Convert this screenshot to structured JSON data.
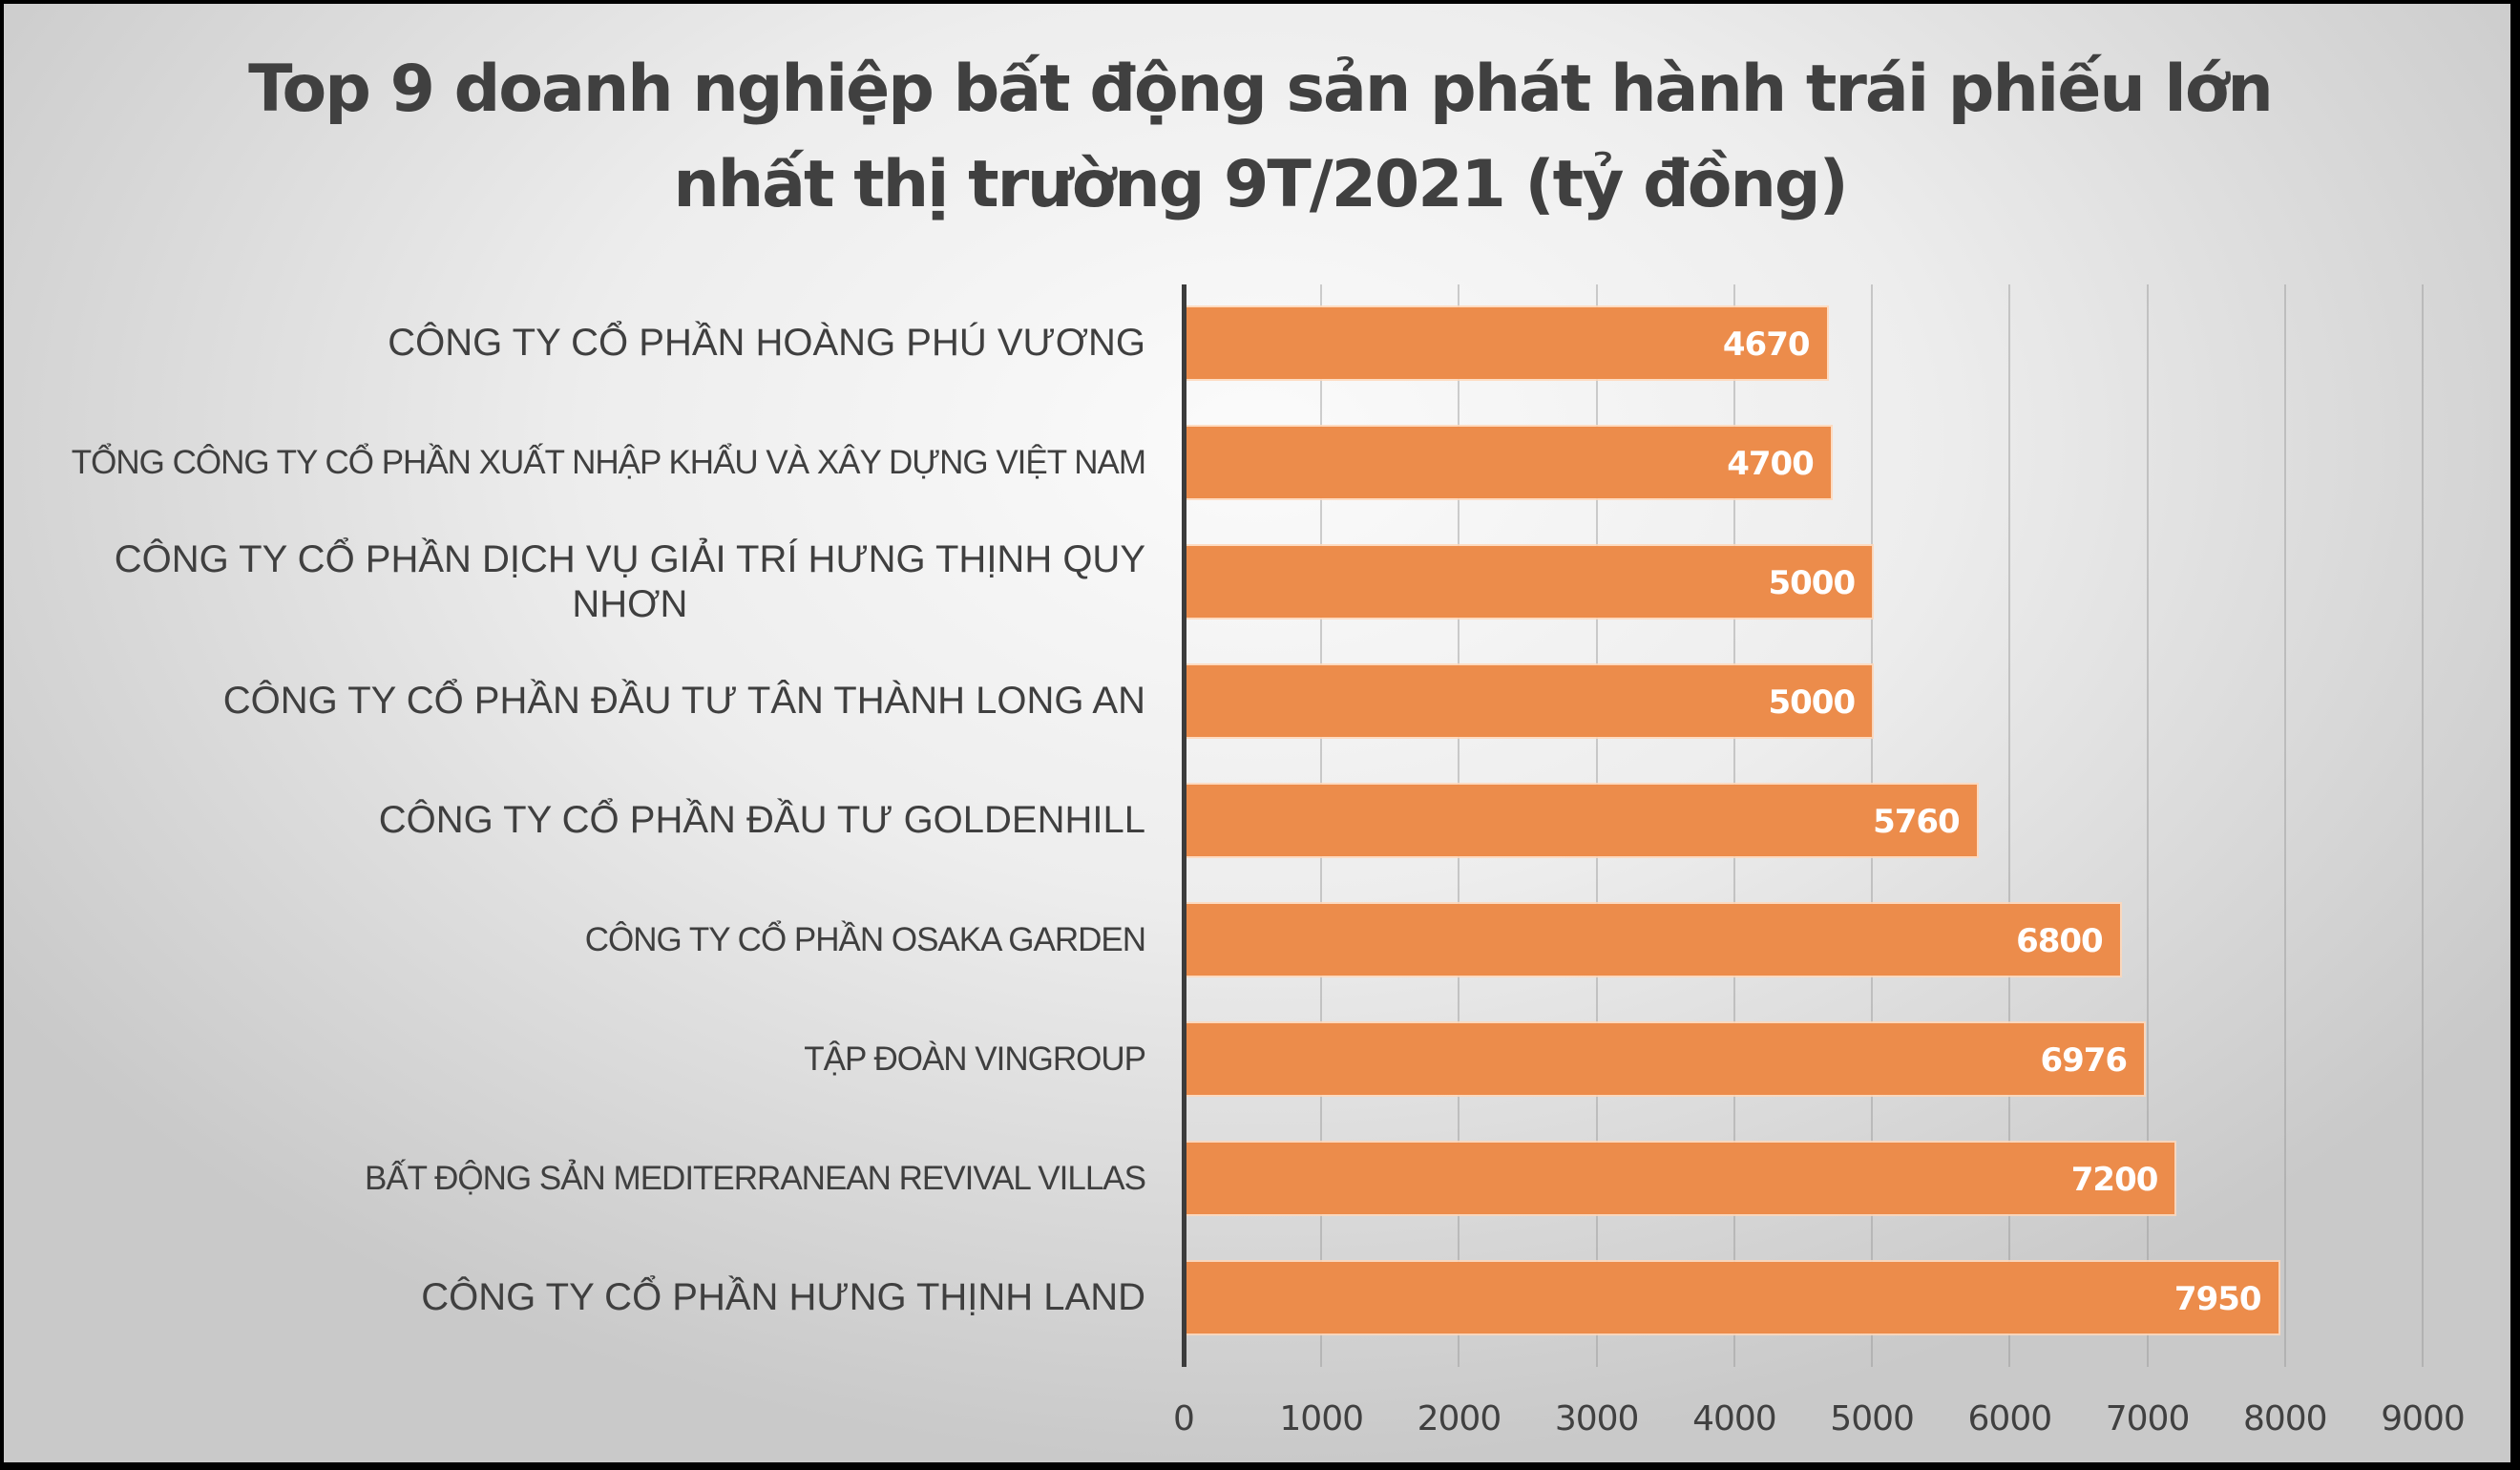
{
  "chart_data": {
    "type": "bar",
    "orientation": "horizontal",
    "title": "Top 9 doanh nghiệp bất động sản phát hành trái phiếu lớn nhất thị trường 9T/2021 (tỷ đồng)",
    "title_lines": [
      "Top 9 doanh nghiệp bất động sản phát hành trái phiếu lớn",
      "nhất thị trường 9T/2021 (tỷ đồng)"
    ],
    "categories": [
      "CÔNG TY CỔ PHẦN HOÀNG PHÚ VƯƠNG",
      "TỔNG CÔNG TY CỔ PHẦN XUẤT NHẬP KHẨU VÀ XÂY DỰNG VIỆT NAM",
      "CÔNG TY CỔ PHẦN DỊCH VỤ GIẢI TRÍ HƯNG THỊNH QUY NHƠN",
      "CÔNG TY CỔ PHẦN ĐẦU TƯ TÂN THÀNH LONG AN",
      "CÔNG TY CỔ PHẦN ĐẦU TƯ GOLDENHILL",
      "CÔNG TY CỔ PHẦN OSAKA GARDEN",
      "TẬP ĐOÀN VINGROUP",
      "BẤT ĐỘNG SẢN MEDITERRANEAN REVIVAL VILLAS",
      "CÔNG TY CỔ PHẦN HƯNG THỊNH LAND"
    ],
    "values": [
      4670,
      4700,
      5000,
      5000,
      5760,
      6800,
      6976,
      7200,
      7950
    ],
    "value_labels": [
      "4670",
      "4700",
      "5000",
      "5000",
      "5760",
      "6800",
      "6976",
      "7200",
      "7950"
    ],
    "xlabel": "",
    "ylabel": "",
    "xlim": [
      0,
      9000
    ],
    "x_ticks": [
      "0",
      "1000",
      "2000",
      "3000",
      "4000",
      "5000",
      "6000",
      "7000",
      "8000",
      "9000"
    ],
    "grid": true,
    "legend": null,
    "bar_color": "#ec8c4b"
  },
  "labels_display": [
    [
      "CÔNG TY CỔ PHẦN HOÀNG PHÚ VƯƠNG"
    ],
    [
      "TỔNG CÔNG TY CỔ PHẦN XUẤT NHẬP KHẨU VÀ XÂY DỰNG VIỆT NAM"
    ],
    [
      "CÔNG TY CỔ PHẦN DỊCH VỤ GIẢI TRÍ HƯNG THỊNH QUY",
      "NHƠN"
    ],
    [
      "CÔNG TY CỔ PHẦN ĐẦU TƯ TÂN THÀNH LONG AN"
    ],
    [
      "CÔNG TY CỔ PHẦN ĐẦU TƯ GOLDENHILL"
    ],
    [
      "CÔNG TY CỔ PHẦN OSAKA GARDEN"
    ],
    [
      "TẬP ĐOÀN VINGROUP"
    ],
    [
      "BẤT ĐỘNG SẢN MEDITERRANEAN REVIVAL VILLAS"
    ],
    [
      "CÔNG TY CỔ PHẦN HƯNG THỊNH LAND"
    ]
  ]
}
